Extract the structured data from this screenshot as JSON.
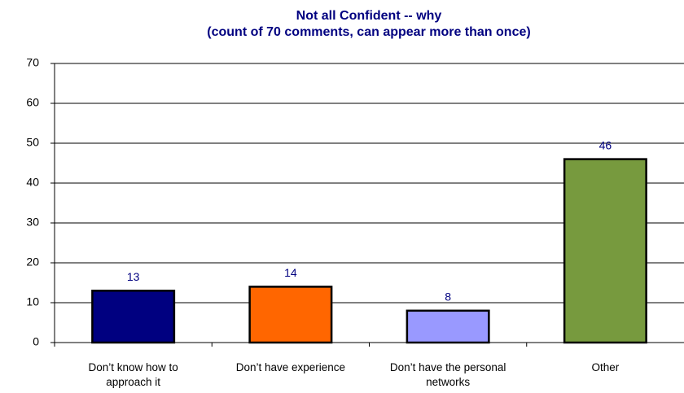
{
  "chart_data": {
    "type": "bar",
    "title": "Not all Confident -- why",
    "subtitle": "(count of 70 comments, can appear more than once)",
    "categories": [
      "Don’t know how to approach it",
      "Don’t have experience",
      "Don’t have the personal networks",
      "Other"
    ],
    "values": [
      13,
      14,
      8,
      46
    ],
    "colors": [
      "#000080",
      "#ff6600",
      "#9999ff",
      "#779a3e"
    ],
    "ylim": [
      0,
      70
    ],
    "yticks": [
      0,
      10,
      20,
      30,
      40,
      50,
      60,
      70
    ],
    "grid": true
  }
}
